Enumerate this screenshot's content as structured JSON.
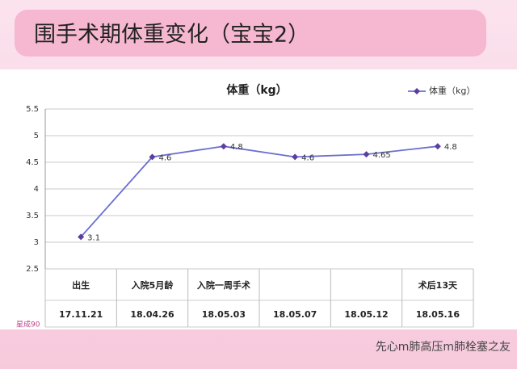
{
  "slide_title": "围手术期体重变化（宝宝2）",
  "chart_data": {
    "type": "line",
    "title": "体重（kg）",
    "categories": [
      "出生",
      "入院5月龄",
      "入院一周手术",
      null,
      null,
      "术后13天"
    ],
    "dates": [
      "17.11.21",
      "18.04.26",
      "18.05.03",
      "18.05.07",
      "18.05.12",
      "18.05.16"
    ],
    "series": [
      {
        "name": "体重（kg）",
        "color": "#6a6fd0",
        "marker_color": "#5a3f9e",
        "values": [
          3.1,
          4.6,
          4.8,
          4.6,
          4.65,
          4.8
        ]
      }
    ],
    "ylim": [
      2.5,
      5.5
    ],
    "yticks": [
      2.5,
      3,
      3.5,
      4,
      4.5,
      5,
      5.5
    ],
    "grid": true,
    "legend": "top-right"
  },
  "logo_text": "星成90",
  "watermark": "先心m肺高压m肺栓塞之友"
}
